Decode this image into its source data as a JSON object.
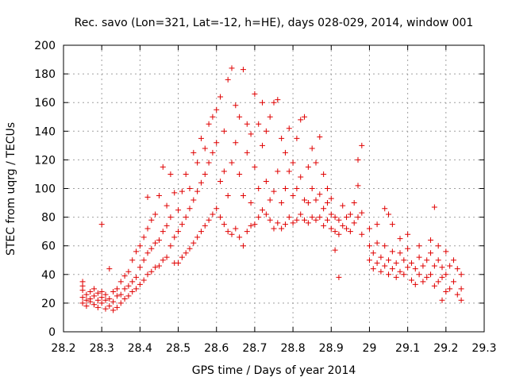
{
  "chart_data": {
    "type": "scatter",
    "title": "Rec. savo (Lon=321, Lat=-12, h=HE), days 028-029, 2014, window 001",
    "xlabel": "GPS time / Days of year 2014",
    "ylabel": "STEC from uqrg / TECUs",
    "xlim": [
      28.2,
      29.3
    ],
    "ylim": [
      0,
      200
    ],
    "xticks": [
      "28.2",
      "28.3",
      "28.4",
      "28.5",
      "28.6",
      "28.7",
      "28.8",
      "28.9",
      "29",
      "29.1",
      "29.2",
      "29.3"
    ],
    "yticks": [
      "0",
      "20",
      "40",
      "60",
      "80",
      "100",
      "120",
      "140",
      "160",
      "180",
      "200"
    ],
    "grid": true,
    "marker": "+",
    "color": "#e00000",
    "series": [
      {
        "name": "STEC",
        "points": [
          [
            28.25,
            24
          ],
          [
            28.25,
            29
          ],
          [
            28.25,
            32
          ],
          [
            28.25,
            35
          ],
          [
            28.25,
            20
          ],
          [
            28.26,
            22
          ],
          [
            28.26,
            26
          ],
          [
            28.26,
            18
          ],
          [
            28.27,
            23
          ],
          [
            28.27,
            28
          ],
          [
            28.27,
            21
          ],
          [
            28.28,
            25
          ],
          [
            28.28,
            30
          ],
          [
            28.28,
            19
          ],
          [
            28.29,
            22
          ],
          [
            28.29,
            27
          ],
          [
            28.29,
            17
          ],
          [
            28.3,
            24
          ],
          [
            28.3,
            28
          ],
          [
            28.3,
            75
          ],
          [
            28.3,
            20
          ],
          [
            28.31,
            16
          ],
          [
            28.31,
            22
          ],
          [
            28.31,
            26
          ],
          [
            28.32,
            18
          ],
          [
            28.32,
            23
          ],
          [
            28.32,
            44
          ],
          [
            28.33,
            15
          ],
          [
            28.33,
            21
          ],
          [
            28.33,
            28
          ],
          [
            28.34,
            17
          ],
          [
            28.34,
            25
          ],
          [
            28.34,
            30
          ],
          [
            28.35,
            20
          ],
          [
            28.35,
            26
          ],
          [
            28.35,
            35
          ],
          [
            28.36,
            23
          ],
          [
            28.36,
            30
          ],
          [
            28.36,
            39
          ],
          [
            28.37,
            25
          ],
          [
            28.37,
            32
          ],
          [
            28.37,
            42
          ],
          [
            28.38,
            28
          ],
          [
            28.38,
            35
          ],
          [
            28.38,
            50
          ],
          [
            28.39,
            30
          ],
          [
            28.39,
            38
          ],
          [
            28.39,
            56
          ],
          [
            28.4,
            33
          ],
          [
            28.4,
            45
          ],
          [
            28.4,
            60
          ],
          [
            28.41,
            36
          ],
          [
            28.41,
            50
          ],
          [
            28.41,
            66
          ],
          [
            28.42,
            40
          ],
          [
            28.42,
            55
          ],
          [
            28.42,
            72
          ],
          [
            28.42,
            94
          ],
          [
            28.43,
            42
          ],
          [
            28.43,
            58
          ],
          [
            28.43,
            78
          ],
          [
            28.44,
            45
          ],
          [
            28.44,
            62
          ],
          [
            28.44,
            82
          ],
          [
            28.45,
            46
          ],
          [
            28.45,
            64
          ],
          [
            28.45,
            95
          ],
          [
            28.46,
            50
          ],
          [
            28.46,
            70
          ],
          [
            28.46,
            115
          ],
          [
            28.47,
            52
          ],
          [
            28.47,
            74
          ],
          [
            28.47,
            88
          ],
          [
            28.48,
            110
          ],
          [
            28.48,
            60
          ],
          [
            28.48,
            80
          ],
          [
            28.49,
            48
          ],
          [
            28.49,
            66
          ],
          [
            28.49,
            97
          ],
          [
            28.5,
            48
          ],
          [
            28.5,
            70
          ],
          [
            28.5,
            85
          ],
          [
            28.51,
            52
          ],
          [
            28.51,
            75
          ],
          [
            28.51,
            98
          ],
          [
            28.52,
            55
          ],
          [
            28.52,
            80
          ],
          [
            28.52,
            110
          ],
          [
            28.53,
            58
          ],
          [
            28.53,
            86
          ],
          [
            28.53,
            100
          ],
          [
            28.54,
            62
          ],
          [
            28.54,
            92
          ],
          [
            28.54,
            125
          ],
          [
            28.55,
            66
          ],
          [
            28.55,
            98
          ],
          [
            28.55,
            118
          ],
          [
            28.56,
            70
          ],
          [
            28.56,
            104
          ],
          [
            28.56,
            135
          ],
          [
            28.57,
            74
          ],
          [
            28.57,
            110
          ],
          [
            28.57,
            128
          ],
          [
            28.58,
            78
          ],
          [
            28.58,
            118
          ],
          [
            28.58,
            145
          ],
          [
            28.59,
            82
          ],
          [
            28.59,
            125
          ],
          [
            28.59,
            150
          ],
          [
            28.6,
            86
          ],
          [
            28.6,
            132
          ],
          [
            28.6,
            155
          ],
          [
            28.61,
            80
          ],
          [
            28.61,
            105
          ],
          [
            28.61,
            164
          ],
          [
            28.62,
            75
          ],
          [
            28.62,
            112
          ],
          [
            28.62,
            140
          ],
          [
            28.63,
            70
          ],
          [
            28.63,
            95
          ],
          [
            28.63,
            176
          ],
          [
            28.64,
            68
          ],
          [
            28.64,
            118
          ],
          [
            28.64,
            184
          ],
          [
            28.65,
            72
          ],
          [
            28.65,
            132
          ],
          [
            28.65,
            158
          ],
          [
            28.66,
            66
          ],
          [
            28.66,
            110
          ],
          [
            28.66,
            150
          ],
          [
            28.67,
            60
          ],
          [
            28.67,
            95
          ],
          [
            28.67,
            183
          ],
          [
            28.68,
            70
          ],
          [
            28.68,
            125
          ],
          [
            28.68,
            145
          ],
          [
            28.69,
            74
          ],
          [
            28.69,
            90
          ],
          [
            28.69,
            138
          ],
          [
            28.7,
            75
          ],
          [
            28.7,
            115
          ],
          [
            28.7,
            166
          ],
          [
            28.71,
            80
          ],
          [
            28.71,
            100
          ],
          [
            28.71,
            145
          ],
          [
            28.72,
            85
          ],
          [
            28.72,
            130
          ],
          [
            28.72,
            160
          ],
          [
            28.73,
            82
          ],
          [
            28.73,
            105
          ],
          [
            28.73,
            140
          ],
          [
            28.74,
            78
          ],
          [
            28.74,
            92
          ],
          [
            28.74,
            150
          ],
          [
            28.75,
            72
          ],
          [
            28.75,
            98
          ],
          [
            28.75,
            160
          ],
          [
            28.76,
            76
          ],
          [
            28.76,
            112
          ],
          [
            28.76,
            162
          ],
          [
            28.77,
            72
          ],
          [
            28.77,
            90
          ],
          [
            28.77,
            135
          ],
          [
            28.78,
            75
          ],
          [
            28.78,
            100
          ],
          [
            28.78,
            125
          ],
          [
            28.79,
            80
          ],
          [
            28.79,
            112
          ],
          [
            28.79,
            142
          ],
          [
            28.8,
            76
          ],
          [
            28.8,
            95
          ],
          [
            28.8,
            118
          ],
          [
            28.81,
            78
          ],
          [
            28.81,
            100
          ],
          [
            28.81,
            135
          ],
          [
            28.82,
            82
          ],
          [
            28.82,
            108
          ],
          [
            28.82,
            148
          ],
          [
            28.83,
            78
          ],
          [
            28.83,
            92
          ],
          [
            28.83,
            150
          ],
          [
            28.84,
            76
          ],
          [
            28.84,
            90
          ],
          [
            28.84,
            115
          ],
          [
            28.85,
            80
          ],
          [
            28.85,
            100
          ],
          [
            28.85,
            128
          ],
          [
            28.86,
            78
          ],
          [
            28.86,
            92
          ],
          [
            28.86,
            118
          ],
          [
            28.87,
            80
          ],
          [
            28.87,
            96
          ],
          [
            28.87,
            136
          ],
          [
            28.88,
            74
          ],
          [
            28.88,
            86
          ],
          [
            28.88,
            110
          ],
          [
            28.89,
            78
          ],
          [
            28.89,
            90
          ],
          [
            28.89,
            100
          ],
          [
            28.9,
            72
          ],
          [
            28.9,
            82
          ],
          [
            28.9,
            93
          ],
          [
            28.91,
            70
          ],
          [
            28.91,
            80
          ],
          [
            28.91,
            57
          ],
          [
            28.92,
            68
          ],
          [
            28.92,
            78
          ],
          [
            28.92,
            38
          ],
          [
            28.93,
            74
          ],
          [
            28.93,
            88
          ],
          [
            28.94,
            72
          ],
          [
            28.94,
            80
          ],
          [
            28.95,
            70
          ],
          [
            28.95,
            82
          ],
          [
            28.96,
            76
          ],
          [
            28.96,
            90
          ],
          [
            28.97,
            80
          ],
          [
            28.97,
            102
          ],
          [
            28.97,
            120
          ],
          [
            28.98,
            83
          ],
          [
            28.98,
            130
          ],
          [
            28.98,
            68
          ],
          [
            29.0,
            50
          ],
          [
            29.0,
            60
          ],
          [
            29.0,
            72
          ],
          [
            29.01,
            44
          ],
          [
            29.01,
            55
          ],
          [
            29.02,
            48
          ],
          [
            29.02,
            62
          ],
          [
            29.02,
            75
          ],
          [
            29.03,
            42
          ],
          [
            29.03,
            52
          ],
          [
            29.04,
            46
          ],
          [
            29.04,
            60
          ],
          [
            29.04,
            86
          ],
          [
            29.05,
            40
          ],
          [
            29.05,
            50
          ],
          [
            29.05,
            82
          ],
          [
            29.06,
            44
          ],
          [
            29.06,
            56
          ],
          [
            29.06,
            75
          ],
          [
            29.07,
            38
          ],
          [
            29.07,
            48
          ],
          [
            29.08,
            42
          ],
          [
            29.08,
            55
          ],
          [
            29.08,
            65
          ],
          [
            29.09,
            40
          ],
          [
            29.09,
            50
          ],
          [
            29.1,
            45
          ],
          [
            29.1,
            58
          ],
          [
            29.1,
            68
          ],
          [
            29.11,
            36
          ],
          [
            29.11,
            48
          ],
          [
            29.12,
            33
          ],
          [
            29.12,
            44
          ],
          [
            29.13,
            40
          ],
          [
            29.13,
            52
          ],
          [
            29.13,
            60
          ],
          [
            29.14,
            35
          ],
          [
            29.14,
            46
          ],
          [
            29.15,
            38
          ],
          [
            29.15,
            50
          ],
          [
            29.16,
            40
          ],
          [
            29.16,
            55
          ],
          [
            29.16,
            64
          ],
          [
            29.17,
            32
          ],
          [
            29.17,
            46
          ],
          [
            29.17,
            87
          ],
          [
            29.18,
            35
          ],
          [
            29.18,
            50
          ],
          [
            29.18,
            60
          ],
          [
            29.19,
            22
          ],
          [
            29.19,
            38
          ],
          [
            29.19,
            45
          ],
          [
            29.2,
            28
          ],
          [
            29.2,
            40
          ],
          [
            29.2,
            56
          ],
          [
            29.21,
            30
          ],
          [
            29.21,
            46
          ],
          [
            29.22,
            35
          ],
          [
            29.22,
            50
          ],
          [
            29.23,
            26
          ],
          [
            29.23,
            44
          ],
          [
            29.24,
            22
          ],
          [
            29.24,
            30
          ],
          [
            29.24,
            40
          ]
        ]
      }
    ]
  }
}
